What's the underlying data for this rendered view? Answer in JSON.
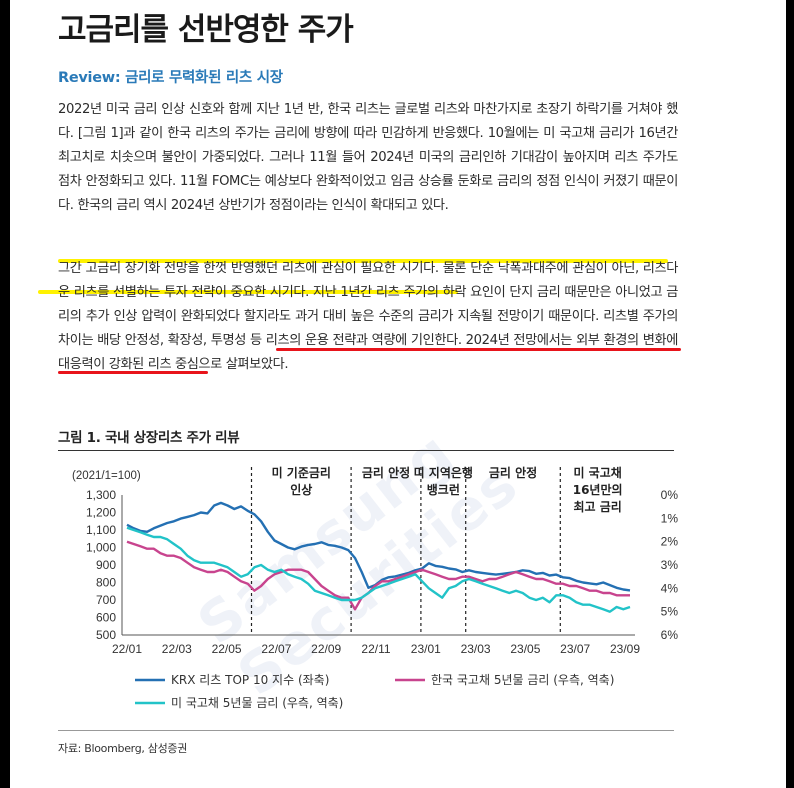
{
  "title": "고금리를 선반영한 주가",
  "review": "Review: 금리로 무력화된 리츠 시장",
  "paragraph1": "2022년 미국 금리 인상 신호와 함께 지난 1년 반, 한국 리츠는 글로벌 리츠와 마찬가지로 초장기 하락기를 거쳐야 했다. [그림 1]과 같이 한국 리츠의 주가는 금리에 방향에 따라 민감하게 반응했다. 10월에는 미 국고채 금리가 16년간 최고치로 치솟으며 불안이 가중되었다. 그러나 11월 들어 2024년 미국의 금리인하 기대감이 높아지며 리츠 주가도 점차 안정화되고 있다. 11월 FOMC는 예상보다 완화적이었고 임금 상승률 둔화로 금리의 정점 인식이 커졌기 때문이다. 한국의 금리 역시 2024년 상반기가 정점이라는 인식이 확대되고 있다.",
  "paragraph2": "그간 고금리 장기화 전망을 한껏 반영했던 리츠에 관심이 필요한 시기다. 물론 단순 낙폭과대주에 관심이 아닌, 리츠다운 리츠를 선별하는 투자 전략이 중요한 시기다. 지난 1년간 리츠 주가의 하락 요인이 단지 금리 때문만은 아니었고 금리의 추가 인상 압력이 완화되었다 할지라도 과거 대비 높은 수준의 금리가 지속될 전망이기 때문이다. 리츠별 주가의 차이는 배당 안정성, 확장성, 투명성 등 리츠의 운용 전략과 역량에 기인한다. 2024년 전망에서는 외부 환경의 변화에 대응력이 강화된 리츠 중심으로 살펴보았다.",
  "figure_title": "그림 1. 국내 상장리츠 주가 리뷰",
  "source": "자료: Bloomberg, 삼성증권",
  "watermark": "Samsung Securities",
  "colors": {
    "krx": "#2470b3",
    "korea": "#c8448e",
    "us": "#22c3c8",
    "review": "#2a7ab8",
    "highlight": "#fff200",
    "underline": "#e8141b"
  },
  "chart_data": {
    "type": "line",
    "unit_label": "(2021/1=100)",
    "x_ticks": [
      "22/01",
      "22/03",
      "22/05",
      "22/07",
      "22/09",
      "22/11",
      "23/01",
      "23/03",
      "23/05",
      "23/07",
      "23/09"
    ],
    "y_left": {
      "ticks": [
        "1,300",
        "1,200",
        "1,100",
        "1,000",
        "900",
        "800",
        "700",
        "600",
        "500"
      ],
      "range": [
        500,
        1300
      ]
    },
    "y_right": {
      "ticks": [
        "0%",
        "1%",
        "2%",
        "3%",
        "4%",
        "5%",
        "6%"
      ],
      "range": [
        0,
        6
      ],
      "inverted": true
    },
    "annotations": [
      {
        "label": [
          "미 기준금리",
          "인상"
        ],
        "x": "22/05"
      },
      {
        "label": [
          "금리 안정"
        ],
        "x": "22/10"
      },
      {
        "label": [
          "미 지역은행",
          "뱅크런"
        ],
        "x": "23/02"
      },
      {
        "label": [
          "금리 안정"
        ],
        "x": "23/05"
      },
      {
        "label": [
          "미 국고채",
          "16년만의",
          "최고 금리"
        ],
        "x": "23/08"
      }
    ],
    "series": [
      {
        "name": "KRX 리츠 TOP 10 지수 (좌축)",
        "axis": "left",
        "values": [
          1130,
          1110,
          1095,
          1090,
          1110,
          1125,
          1140,
          1150,
          1165,
          1175,
          1185,
          1200,
          1195,
          1240,
          1255,
          1240,
          1220,
          1235,
          1210,
          1190,
          1150,
          1090,
          1040,
          1020,
          1000,
          990,
          1005,
          1015,
          1020,
          1030,
          1015,
          1010,
          1000,
          985,
          940,
          860,
          770,
          785,
          815,
          830,
          835,
          845,
          855,
          870,
          880,
          910,
          895,
          890,
          880,
          875,
          860,
          870,
          860,
          855,
          850,
          845,
          850,
          855,
          860,
          870,
          865,
          850,
          855,
          840,
          845,
          830,
          825,
          810,
          800,
          795,
          790,
          800,
          785,
          770,
          760,
          755
        ]
      },
      {
        "name": "한국 국고채 5년물 금리 (우측, 역축)",
        "axis": "right",
        "values": [
          2.0,
          2.1,
          2.2,
          2.3,
          2.3,
          2.5,
          2.6,
          2.6,
          2.7,
          2.9,
          3.1,
          3.2,
          3.3,
          3.3,
          3.2,
          3.3,
          3.5,
          3.7,
          3.8,
          4.1,
          3.9,
          3.6,
          3.4,
          3.3,
          3.2,
          3.2,
          3.2,
          3.3,
          3.6,
          3.9,
          4.1,
          4.3,
          4.4,
          4.4,
          4.9,
          4.4,
          4.2,
          3.9,
          3.7,
          3.7,
          3.6,
          3.5,
          3.4,
          3.3,
          3.2,
          3.3,
          3.4,
          3.5,
          3.6,
          3.6,
          3.5,
          3.5,
          3.6,
          3.7,
          3.6,
          3.6,
          3.5,
          3.4,
          3.3,
          3.4,
          3.5,
          3.6,
          3.6,
          3.7,
          3.8,
          3.8,
          3.9,
          3.9,
          4.0,
          4.1,
          4.1,
          4.2,
          4.2,
          4.3,
          4.3,
          4.3
        ]
      },
      {
        "name": "미 국고채 5년물 금리 (우측, 역축)",
        "axis": "right",
        "values": [
          1.4,
          1.5,
          1.6,
          1.7,
          1.8,
          1.8,
          1.9,
          2.1,
          2.3,
          2.6,
          2.8,
          2.9,
          2.9,
          2.9,
          3.0,
          3.1,
          3.3,
          3.5,
          3.4,
          3.1,
          3.0,
          3.2,
          3.3,
          3.2,
          3.4,
          3.5,
          3.6,
          3.8,
          4.1,
          4.2,
          4.3,
          4.4,
          4.5,
          4.5,
          4.5,
          4.4,
          4.2,
          4.0,
          3.9,
          3.8,
          3.7,
          3.6,
          3.5,
          3.4,
          3.7,
          4.0,
          4.2,
          4.4,
          4.0,
          3.9,
          3.7,
          3.6,
          3.7,
          3.8,
          3.9,
          4.0,
          4.1,
          4.2,
          4.1,
          4.2,
          4.4,
          4.5,
          4.4,
          4.6,
          4.3,
          4.3,
          4.4,
          4.6,
          4.7,
          4.7,
          4.8,
          4.9,
          5.0,
          4.8,
          4.9,
          4.8
        ]
      }
    ]
  }
}
